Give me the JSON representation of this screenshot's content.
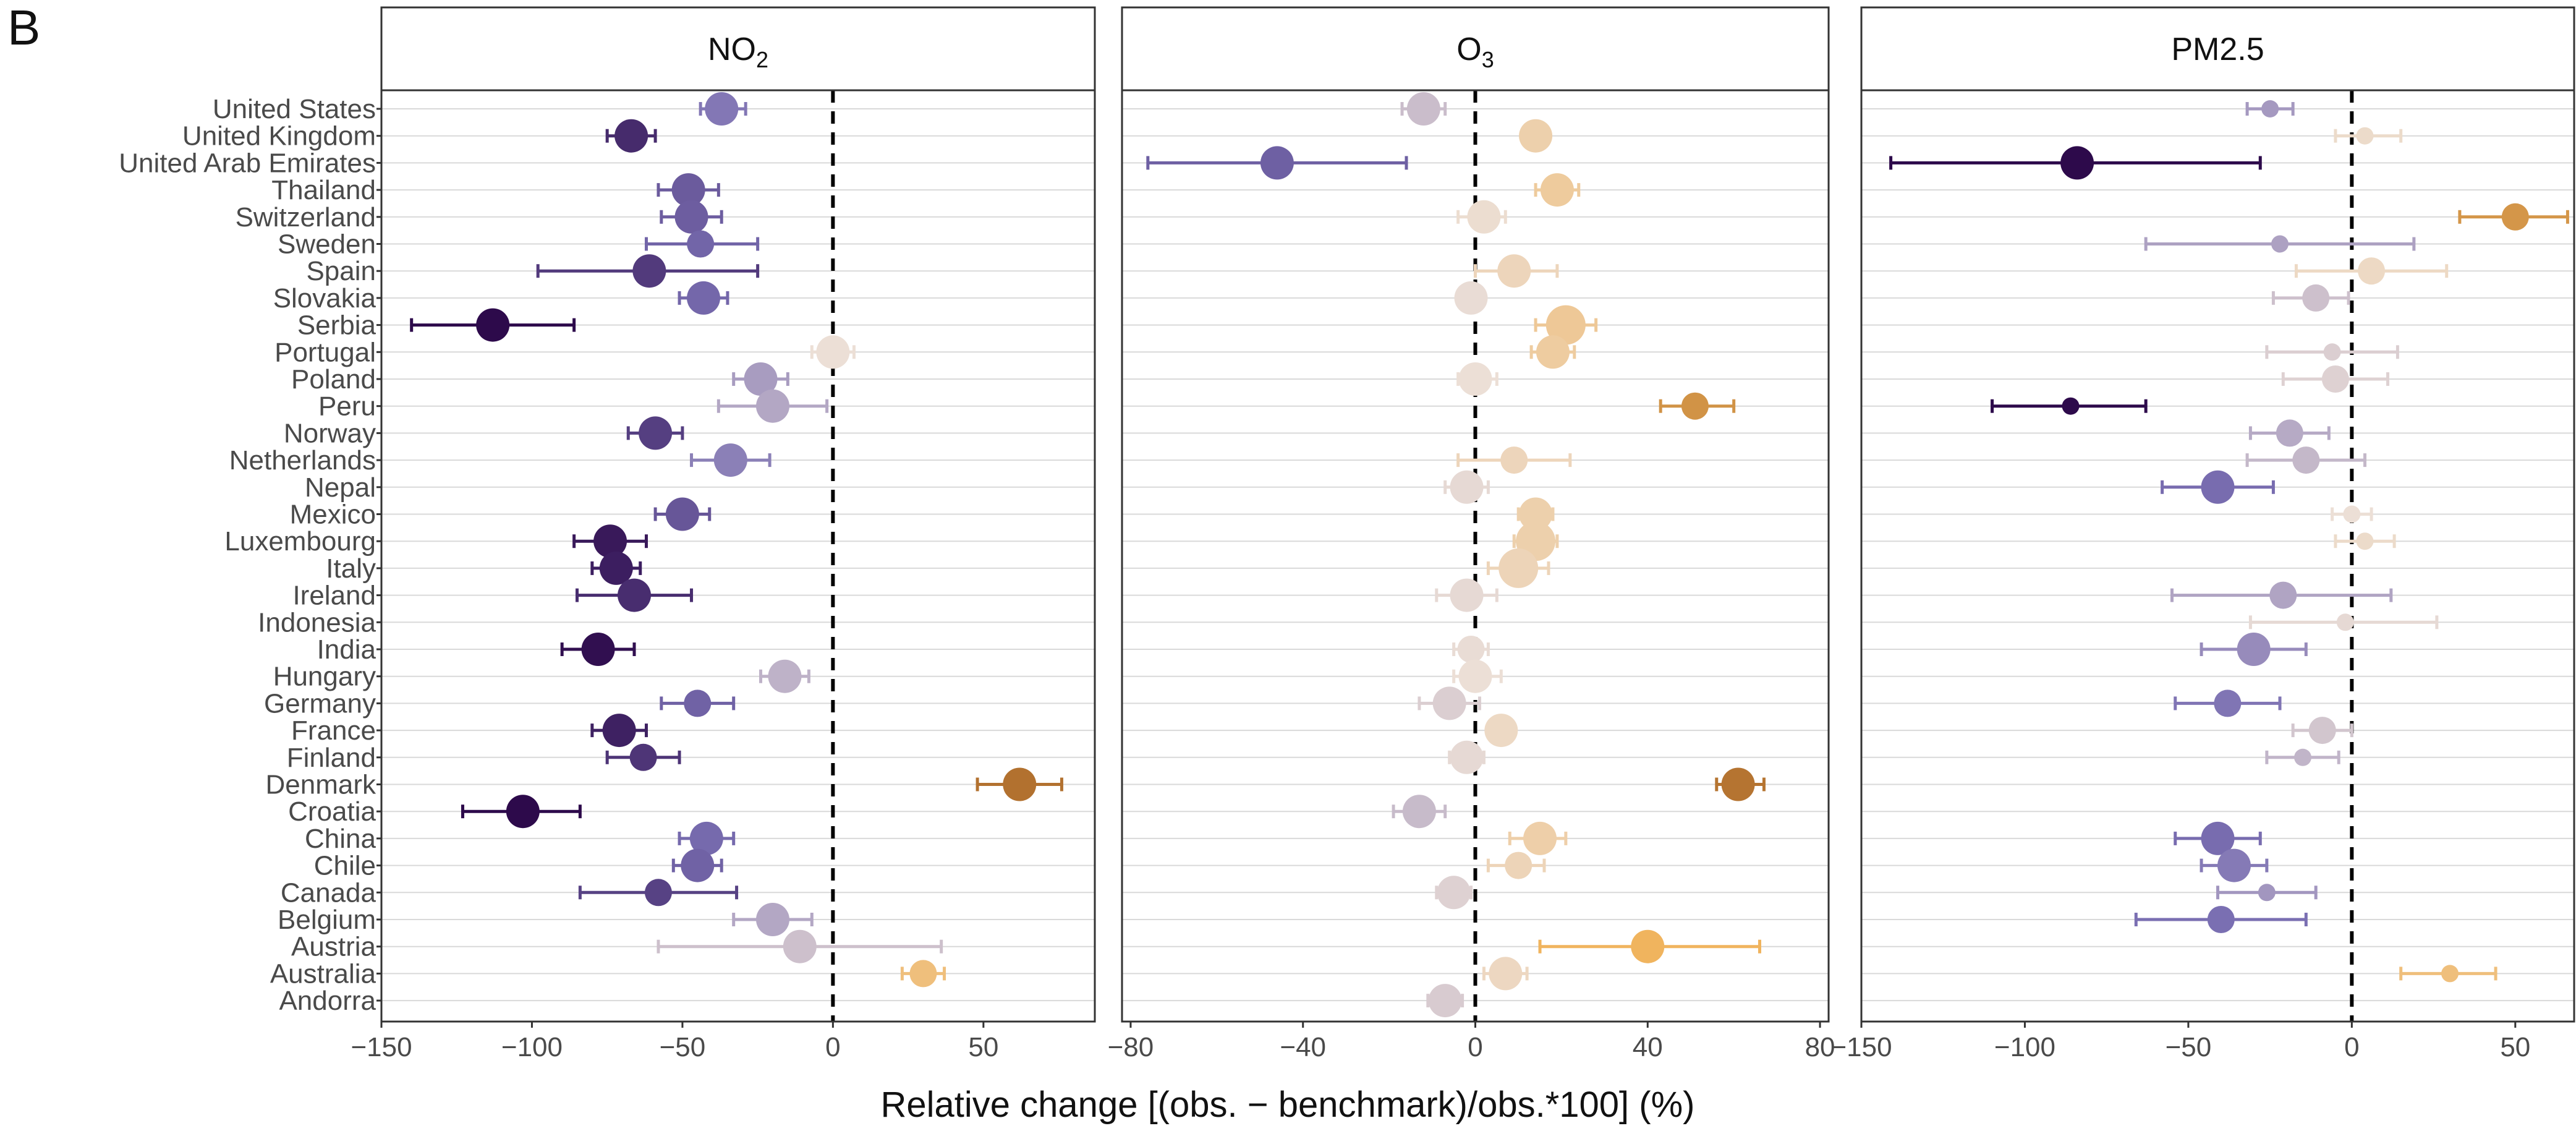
{
  "panel_label": "B",
  "chart_data": {
    "type": "scatter",
    "xlabel": "Relative change [(obs. − benchmark)/obs.*100] (%)",
    "grid": true,
    "legend": "none",
    "reference_line": 0,
    "countries": [
      "United States",
      "United Kingdom",
      "United Arab Emirates",
      "Thailand",
      "Switzerland",
      "Sweden",
      "Spain",
      "Slovakia",
      "Serbia",
      "Portugal",
      "Poland",
      "Peru",
      "Norway",
      "Netherlands",
      "Nepal",
      "Mexico",
      "Luxembourg",
      "Italy",
      "Ireland",
      "Indonesia",
      "India",
      "Hungary",
      "Germany",
      "France",
      "Finland",
      "Denmark",
      "Croatia",
      "China",
      "Chile",
      "Canada",
      "Belgium",
      "Austria",
      "Australia",
      "Andorra"
    ],
    "panels": [
      {
        "name_main": "NO",
        "name_sub": "2",
        "xlim": [
          -150,
          87
        ],
        "xticks": [
          -150,
          -100,
          -50,
          0,
          50
        ],
        "xtick_labels": [
          "−150",
          "−100",
          "−50",
          "0",
          "50"
        ],
        "points": [
          {
            "country": "United States",
            "value": -37,
            "low": -44,
            "high": -29,
            "size": 3
          },
          {
            "country": "United Kingdom",
            "value": -67,
            "low": -75,
            "high": -59,
            "size": 3
          },
          {
            "country": "Thailand",
            "value": -48,
            "low": -58,
            "high": -38,
            "size": 3
          },
          {
            "country": "Switzerland",
            "value": -47,
            "low": -57,
            "high": -37,
            "size": 3
          },
          {
            "country": "Sweden",
            "value": -44,
            "low": -62,
            "high": -25,
            "size": 2
          },
          {
            "country": "Spain",
            "value": -61,
            "low": -98,
            "high": -25,
            "size": 3
          },
          {
            "country": "Slovakia",
            "value": -43,
            "low": -51,
            "high": -35,
            "size": 3
          },
          {
            "country": "Serbia",
            "value": -113,
            "low": -140,
            "high": -86,
            "size": 3
          },
          {
            "country": "Portugal",
            "value": 0,
            "low": -7,
            "high": 7,
            "size": 3
          },
          {
            "country": "Poland",
            "value": -24,
            "low": -33,
            "high": -15,
            "size": 3
          },
          {
            "country": "Peru",
            "value": -20,
            "low": -38,
            "high": -2,
            "size": 3
          },
          {
            "country": "Norway",
            "value": -59,
            "low": -68,
            "high": -50,
            "size": 3
          },
          {
            "country": "Netherlands",
            "value": -34,
            "low": -47,
            "high": -21,
            "size": 3
          },
          {
            "country": "Mexico",
            "value": -50,
            "low": -59,
            "high": -41,
            "size": 3
          },
          {
            "country": "Luxembourg",
            "value": -74,
            "low": -86,
            "high": -62,
            "size": 3
          },
          {
            "country": "Italy",
            "value": -72,
            "low": -80,
            "high": -64,
            "size": 3
          },
          {
            "country": "Ireland",
            "value": -66,
            "low": -85,
            "high": -47,
            "size": 3
          },
          {
            "country": "India",
            "value": -78,
            "low": -90,
            "high": -66,
            "size": 3
          },
          {
            "country": "Hungary",
            "value": -16,
            "low": -24,
            "high": -8,
            "size": 3
          },
          {
            "country": "Germany",
            "value": -45,
            "low": -57,
            "high": -33,
            "size": 2
          },
          {
            "country": "France",
            "value": -71,
            "low": -80,
            "high": -62,
            "size": 3
          },
          {
            "country": "Finland",
            "value": -63,
            "low": -75,
            "high": -51,
            "size": 2
          },
          {
            "country": "Denmark",
            "value": 62,
            "low": 48,
            "high": 76,
            "size": 3
          },
          {
            "country": "Croatia",
            "value": -103,
            "low": -123,
            "high": -84,
            "size": 3
          },
          {
            "country": "China",
            "value": -42,
            "low": -51,
            "high": -33,
            "size": 3
          },
          {
            "country": "Chile",
            "value": -45,
            "low": -53,
            "high": -37,
            "size": 3
          },
          {
            "country": "Canada",
            "value": -58,
            "low": -84,
            "high": -32,
            "size": 2
          },
          {
            "country": "Belgium",
            "value": -20,
            "low": -33,
            "high": -7,
            "size": 3
          },
          {
            "country": "Austria",
            "value": -11,
            "low": -58,
            "high": 36,
            "size": 3
          },
          {
            "country": "Australia",
            "value": 30,
            "low": 23,
            "high": 37,
            "size": 2
          }
        ]
      },
      {
        "name_main": "O",
        "name_sub": "3",
        "xlim": [
          -82,
          82
        ],
        "xticks": [
          -80,
          -40,
          0,
          40,
          80
        ],
        "xtick_labels": [
          "−80",
          "−40",
          "0",
          "40",
          "80"
        ],
        "points": [
          {
            "country": "United States",
            "value": -12,
            "low": -17,
            "high": -7,
            "size": 3
          },
          {
            "country": "United Kingdom",
            "value": 14,
            "low": 14,
            "high": 14,
            "size": 3
          },
          {
            "country": "United Arab Emirates",
            "value": -46,
            "low": -76,
            "high": -16,
            "size": 3
          },
          {
            "country": "Thailand",
            "value": 19,
            "low": 14,
            "high": 24,
            "size": 3
          },
          {
            "country": "Switzerland",
            "value": 2,
            "low": -4,
            "high": 7,
            "size": 3
          },
          {
            "country": "Spain",
            "value": 9,
            "low": 0,
            "high": 19,
            "size": 3
          },
          {
            "country": "Slovakia",
            "value": -1,
            "low": -1,
            "high": -1,
            "size": 3
          },
          {
            "country": "Serbia",
            "value": 21,
            "low": 14,
            "high": 28,
            "size": 4
          },
          {
            "country": "Portugal",
            "value": 18,
            "low": 13,
            "high": 23,
            "size": 3
          },
          {
            "country": "Poland",
            "value": 0,
            "low": -4,
            "high": 5,
            "size": 3
          },
          {
            "country": "Peru",
            "value": 51,
            "low": 43,
            "high": 60,
            "size": 2
          },
          {
            "country": "Netherlands",
            "value": 9,
            "low": -4,
            "high": 22,
            "size": 2
          },
          {
            "country": "Nepal",
            "value": -2,
            "low": -7,
            "high": 3,
            "size": 3
          },
          {
            "country": "Mexico",
            "value": 14,
            "low": 10,
            "high": 18,
            "size": 3
          },
          {
            "country": "Luxembourg",
            "value": 14,
            "low": 9,
            "high": 19,
            "size": 4
          },
          {
            "country": "Italy",
            "value": 10,
            "low": 3,
            "high": 17,
            "size": 4
          },
          {
            "country": "Ireland",
            "value": -2,
            "low": -9,
            "high": 5,
            "size": 3
          },
          {
            "country": "India",
            "value": -1,
            "low": -5,
            "high": 3,
            "size": 2
          },
          {
            "country": "Hungary",
            "value": 0,
            "low": -5,
            "high": 6,
            "size": 3
          },
          {
            "country": "Germany",
            "value": -6,
            "low": -13,
            "high": 1,
            "size": 3
          },
          {
            "country": "France",
            "value": 6,
            "low": 6,
            "high": 6,
            "size": 3
          },
          {
            "country": "Finland",
            "value": -2,
            "low": -6,
            "high": 2,
            "size": 3
          },
          {
            "country": "Denmark",
            "value": 61,
            "low": 56,
            "high": 67,
            "size": 3
          },
          {
            "country": "Croatia",
            "value": -13,
            "low": -19,
            "high": -7,
            "size": 3
          },
          {
            "country": "China",
            "value": 15,
            "low": 8,
            "high": 21,
            "size": 3
          },
          {
            "country": "Chile",
            "value": 10,
            "low": 3,
            "high": 16,
            "size": 2
          },
          {
            "country": "Canada",
            "value": -5,
            "low": -9,
            "high": -1,
            "size": 3
          },
          {
            "country": "Austria",
            "value": 40,
            "low": 15,
            "high": 66,
            "size": 3
          },
          {
            "country": "Australia",
            "value": 7,
            "low": 2,
            "high": 12,
            "size": 3
          },
          {
            "country": "Andorra",
            "value": -7,
            "low": -11,
            "high": -3,
            "size": 3
          }
        ]
      },
      {
        "name_main": "PM2.5",
        "name_sub": "",
        "xlim": [
          -150,
          68
        ],
        "xticks": [
          -150,
          -100,
          -50,
          0,
          50
        ],
        "xtick_labels": [
          "−150",
          "−100",
          "−50",
          "0",
          "50"
        ],
        "points": [
          {
            "country": "United States",
            "value": -25,
            "low": -32,
            "high": -18,
            "size": 1
          },
          {
            "country": "United Kingdom",
            "value": 4,
            "low": -5,
            "high": 15,
            "size": 1
          },
          {
            "country": "United Arab Emirates",
            "value": -84,
            "low": -141,
            "high": -28,
            "size": 3
          },
          {
            "country": "Switzerland",
            "value": 50,
            "low": 33,
            "high": 66,
            "size": 2
          },
          {
            "country": "Sweden",
            "value": -22,
            "low": -63,
            "high": 19,
            "size": 1
          },
          {
            "country": "Spain",
            "value": 6,
            "low": -17,
            "high": 29,
            "size": 2
          },
          {
            "country": "Slovakia",
            "value": -11,
            "low": -24,
            "high": -1,
            "size": 2
          },
          {
            "country": "Portugal",
            "value": -6,
            "low": -26,
            "high": 14,
            "size": 1
          },
          {
            "country": "Poland",
            "value": -5,
            "low": -21,
            "high": 11,
            "size": 2
          },
          {
            "country": "Peru",
            "value": -86,
            "low": -110,
            "high": -63,
            "size": 1
          },
          {
            "country": "Norway",
            "value": -19,
            "low": -31,
            "high": -7,
            "size": 2
          },
          {
            "country": "Netherlands",
            "value": -14,
            "low": -32,
            "high": 4,
            "size": 2
          },
          {
            "country": "Nepal",
            "value": -41,
            "low": -58,
            "high": -24,
            "size": 3
          },
          {
            "country": "Mexico",
            "value": 0,
            "low": -6,
            "high": 6,
            "size": 1
          },
          {
            "country": "Luxembourg",
            "value": 4,
            "low": -5,
            "high": 13,
            "size": 1
          },
          {
            "country": "Ireland",
            "value": -21,
            "low": -55,
            "high": 12,
            "size": 2
          },
          {
            "country": "Indonesia",
            "value": -2,
            "low": -31,
            "high": 26,
            "size": 1
          },
          {
            "country": "India",
            "value": -30,
            "low": -46,
            "high": -14,
            "size": 3
          },
          {
            "country": "Germany",
            "value": -38,
            "low": -54,
            "high": -22,
            "size": 2
          },
          {
            "country": "France",
            "value": -9,
            "low": -18,
            "high": 0,
            "size": 2
          },
          {
            "country": "Finland",
            "value": -15,
            "low": -26,
            "high": -4,
            "size": 1
          },
          {
            "country": "China",
            "value": -41,
            "low": -54,
            "high": -28,
            "size": 3
          },
          {
            "country": "Chile",
            "value": -36,
            "low": -46,
            "high": -26,
            "size": 3
          },
          {
            "country": "Canada",
            "value": -26,
            "low": -41,
            "high": -11,
            "size": 1
          },
          {
            "country": "Belgium",
            "value": -40,
            "low": -66,
            "high": -14,
            "size": 2
          },
          {
            "country": "Australia",
            "value": 30,
            "low": 15,
            "high": 44,
            "size": 1
          }
        ]
      }
    ]
  },
  "colors": {
    "background": "#ffffff",
    "panel_border": "#333333",
    "strip_fill": "#ffffff",
    "grid": "#d9d9d9",
    "zero_line": "#000000",
    "scale_negative_strong": "#2d0a4b",
    "scale_negative_mid": "#7a6fb2",
    "scale_neutral": "#ecdfd6",
    "scale_positive_mid": "#f0b45e",
    "scale_positive_strong": "#7f3b08"
  }
}
